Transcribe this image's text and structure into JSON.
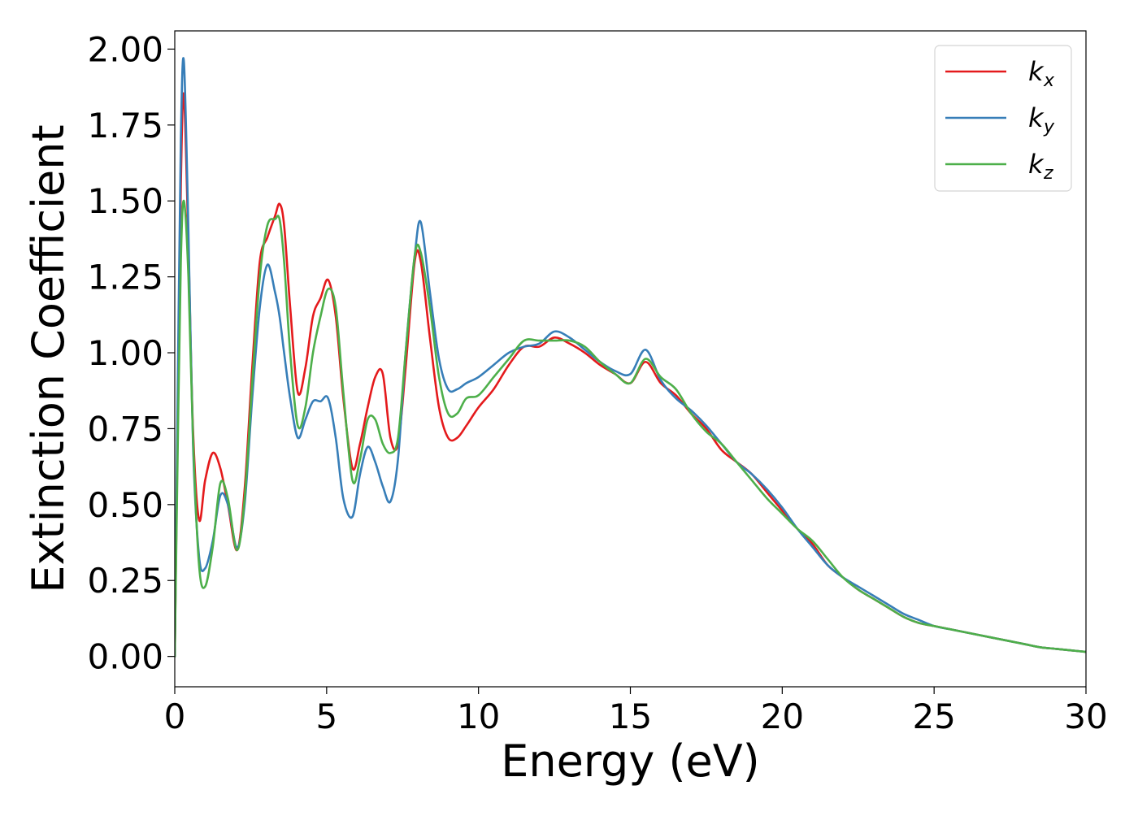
{
  "chart_data": {
    "type": "line",
    "xlabel": "Energy (eV)",
    "ylabel": "Extinction Coefficient",
    "xlim": [
      0,
      30
    ],
    "ylim": [
      -0.1,
      2.06
    ],
    "xticks": [
      0,
      5,
      10,
      15,
      20,
      25,
      30
    ],
    "xtick_labels": [
      "0",
      "5",
      "10",
      "15",
      "20",
      "25",
      "30"
    ],
    "yticks": [
      0.0,
      0.25,
      0.5,
      0.75,
      1.0,
      1.25,
      1.5,
      1.75,
      2.0
    ],
    "ytick_labels": [
      "0.00",
      "0.25",
      "0.50",
      "0.75",
      "1.00",
      "1.25",
      "1.50",
      "1.75",
      "2.00"
    ],
    "grid": false,
    "legend_position": "top-right",
    "series": [
      {
        "name": "k_x",
        "label_main": "k",
        "label_sub": "x",
        "color": "#e41a1c",
        "x": [
          0.0,
          0.1,
          0.2,
          0.3,
          0.45,
          0.6,
          0.8,
          1.0,
          1.25,
          1.5,
          1.75,
          2.05,
          2.3,
          2.55,
          2.8,
          3.05,
          3.3,
          3.45,
          3.6,
          3.8,
          4.05,
          4.3,
          4.55,
          4.8,
          5.05,
          5.3,
          5.55,
          5.85,
          6.1,
          6.35,
          6.6,
          6.85,
          7.1,
          7.35,
          7.6,
          7.9,
          8.1,
          8.4,
          8.7,
          9.0,
          9.3,
          9.6,
          10.0,
          10.5,
          11.0,
          11.5,
          12.0,
          12.5,
          13.0,
          13.5,
          14.0,
          14.5,
          15.0,
          15.5,
          16.0,
          16.5,
          17.0,
          17.5,
          18.0,
          18.5,
          19.0,
          19.5,
          20.0,
          20.5,
          21.0,
          21.5,
          22.0,
          22.5,
          23.0,
          23.5,
          24.0,
          24.5,
          25.0,
          25.5,
          26.0,
          26.5,
          27.0,
          27.5,
          28.0,
          28.5,
          29.0,
          29.5,
          30.0
        ],
        "y": [
          0.0,
          0.8,
          1.55,
          1.85,
          1.35,
          0.75,
          0.45,
          0.58,
          0.67,
          0.62,
          0.5,
          0.35,
          0.55,
          0.95,
          1.3,
          1.38,
          1.45,
          1.49,
          1.42,
          1.15,
          0.87,
          0.95,
          1.12,
          1.18,
          1.24,
          1.12,
          0.85,
          0.62,
          0.7,
          0.82,
          0.92,
          0.93,
          0.72,
          0.7,
          0.95,
          1.3,
          1.3,
          1.05,
          0.82,
          0.72,
          0.72,
          0.76,
          0.82,
          0.88,
          0.96,
          1.02,
          1.02,
          1.05,
          1.03,
          1.0,
          0.96,
          0.93,
          0.9,
          0.97,
          0.9,
          0.86,
          0.8,
          0.75,
          0.68,
          0.64,
          0.6,
          0.54,
          0.48,
          0.42,
          0.37,
          0.3,
          0.26,
          0.22,
          0.19,
          0.16,
          0.13,
          0.11,
          0.1,
          0.09,
          0.08,
          0.07,
          0.06,
          0.05,
          0.04,
          0.03,
          0.025,
          0.02,
          0.015
        ]
      },
      {
        "name": "k_y",
        "label_main": "k",
        "label_sub": "y",
        "color": "#377eb8",
        "x": [
          0.0,
          0.1,
          0.2,
          0.3,
          0.45,
          0.6,
          0.8,
          1.0,
          1.25,
          1.5,
          1.75,
          2.05,
          2.3,
          2.55,
          2.8,
          3.05,
          3.3,
          3.45,
          3.6,
          3.8,
          4.05,
          4.3,
          4.55,
          4.8,
          5.05,
          5.3,
          5.55,
          5.85,
          6.1,
          6.35,
          6.6,
          6.85,
          7.1,
          7.35,
          7.6,
          7.9,
          8.1,
          8.4,
          8.7,
          9.0,
          9.3,
          9.6,
          10.0,
          10.5,
          11.0,
          11.5,
          12.0,
          12.5,
          13.0,
          13.5,
          14.0,
          14.5,
          15.0,
          15.5,
          16.0,
          16.5,
          17.0,
          17.5,
          18.0,
          18.5,
          19.0,
          19.5,
          20.0,
          20.5,
          21.0,
          21.5,
          22.0,
          22.5,
          23.0,
          23.5,
          24.0,
          24.5,
          25.0,
          25.5,
          26.0,
          26.5,
          27.0,
          27.5,
          28.0,
          28.5,
          29.0,
          29.5,
          30.0
        ],
        "y": [
          0.0,
          0.9,
          1.7,
          1.96,
          1.4,
          0.7,
          0.33,
          0.29,
          0.38,
          0.53,
          0.5,
          0.36,
          0.5,
          0.85,
          1.15,
          1.29,
          1.2,
          1.12,
          1.0,
          0.85,
          0.72,
          0.78,
          0.84,
          0.84,
          0.85,
          0.72,
          0.52,
          0.46,
          0.6,
          0.69,
          0.64,
          0.56,
          0.51,
          0.65,
          1.0,
          1.32,
          1.43,
          1.2,
          0.98,
          0.88,
          0.88,
          0.9,
          0.92,
          0.96,
          1.0,
          1.02,
          1.03,
          1.07,
          1.05,
          1.01,
          0.97,
          0.94,
          0.93,
          1.01,
          0.91,
          0.85,
          0.81,
          0.76,
          0.7,
          0.64,
          0.6,
          0.55,
          0.49,
          0.42,
          0.36,
          0.3,
          0.26,
          0.23,
          0.2,
          0.17,
          0.14,
          0.12,
          0.1,
          0.09,
          0.08,
          0.07,
          0.06,
          0.05,
          0.04,
          0.03,
          0.025,
          0.02,
          0.015
        ]
      },
      {
        "name": "k_z",
        "label_main": "k",
        "label_sub": "z",
        "color": "#4daf4a",
        "x": [
          0.0,
          0.1,
          0.2,
          0.3,
          0.45,
          0.6,
          0.8,
          1.0,
          1.25,
          1.5,
          1.75,
          2.05,
          2.3,
          2.55,
          2.8,
          3.05,
          3.3,
          3.45,
          3.6,
          3.8,
          4.05,
          4.3,
          4.55,
          4.8,
          5.05,
          5.3,
          5.55,
          5.85,
          6.1,
          6.35,
          6.6,
          6.85,
          7.1,
          7.35,
          7.6,
          7.9,
          8.1,
          8.4,
          8.7,
          9.0,
          9.3,
          9.6,
          10.0,
          10.5,
          11.0,
          11.5,
          12.0,
          12.5,
          13.0,
          13.5,
          14.0,
          14.5,
          15.0,
          15.5,
          16.0,
          16.5,
          17.0,
          17.5,
          18.0,
          18.5,
          19.0,
          19.5,
          20.0,
          20.5,
          21.0,
          21.5,
          22.0,
          22.5,
          23.0,
          23.5,
          24.0,
          24.5,
          25.0,
          25.5,
          26.0,
          26.5,
          27.0,
          27.5,
          28.0,
          28.5,
          29.0,
          29.5,
          30.0
        ],
        "y": [
          0.0,
          0.7,
          1.3,
          1.5,
          1.25,
          0.72,
          0.3,
          0.23,
          0.36,
          0.57,
          0.52,
          0.35,
          0.52,
          0.9,
          1.25,
          1.42,
          1.44,
          1.44,
          1.3,
          1.0,
          0.76,
          0.82,
          1.0,
          1.12,
          1.21,
          1.15,
          0.87,
          0.58,
          0.65,
          0.78,
          0.78,
          0.7,
          0.67,
          0.72,
          1.0,
          1.32,
          1.33,
          1.15,
          0.92,
          0.8,
          0.8,
          0.85,
          0.86,
          0.92,
          0.98,
          1.04,
          1.04,
          1.04,
          1.04,
          1.02,
          0.97,
          0.93,
          0.9,
          0.98,
          0.92,
          0.88,
          0.8,
          0.74,
          0.7,
          0.64,
          0.58,
          0.52,
          0.47,
          0.42,
          0.38,
          0.32,
          0.26,
          0.22,
          0.19,
          0.16,
          0.13,
          0.11,
          0.1,
          0.09,
          0.08,
          0.07,
          0.06,
          0.05,
          0.04,
          0.03,
          0.025,
          0.02,
          0.015
        ]
      }
    ]
  }
}
